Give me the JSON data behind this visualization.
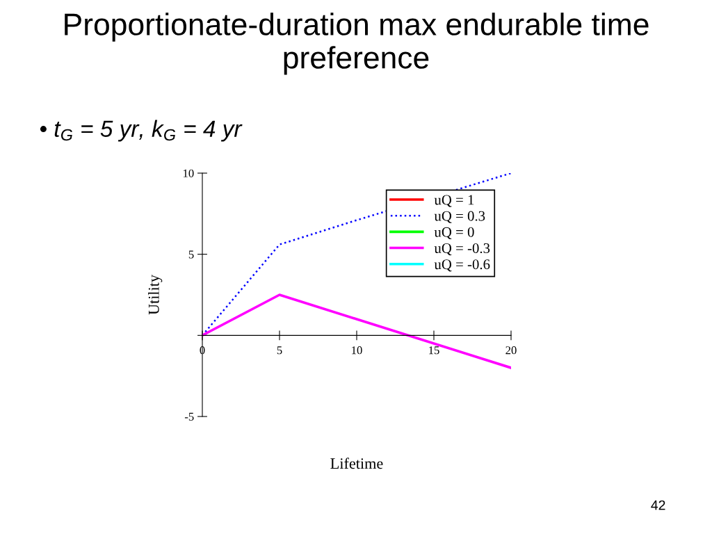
{
  "chart_data": {
    "type": "line",
    "title": "Proportionate-duration max endurable time preference",
    "subtitle": "• t$_{G}$ = 5 yr, k$_{G}$ = 4 yr",
    "xlabel": "Lifetime",
    "ylabel": "Utility",
    "annotations": [
      "42"
    ],
    "x": [
      0,
      5,
      10,
      20
    ],
    "series": [
      {
        "name": "uQ = 1",
        "color": "#ff0000",
        "line_style": "solid",
        "values": [
          null,
          null,
          null,
          null
        ]
      },
      {
        "name": "uQ = 0.3",
        "color": "#0000ff",
        "line_style": "dotted",
        "values": [
          0,
          5.6,
          7.1,
          10
        ]
      },
      {
        "name": "uQ = 0",
        "color": "#00ff00",
        "line_style": "solid",
        "values": [
          null,
          null,
          null,
          null
        ]
      },
      {
        "name": "uQ = -0.3",
        "color": "#ff00ff",
        "line_style": "solid",
        "values": [
          0,
          2.5,
          1,
          -2
        ]
      },
      {
        "name": "uQ = -0.6",
        "color": "#00ffff",
        "line_style": "solid",
        "values": [
          null,
          null,
          null,
          null
        ]
      }
    ],
    "xlim": [
      0,
      20
    ],
    "ylim": [
      -5,
      10
    ],
    "xticks": [
      0,
      5,
      10,
      15,
      20
    ],
    "yticks": [
      -5,
      {
        "value": 0,
        "label": null
      },
      5,
      10
    ],
    "legend": "top right",
    "grid": false
  }
}
